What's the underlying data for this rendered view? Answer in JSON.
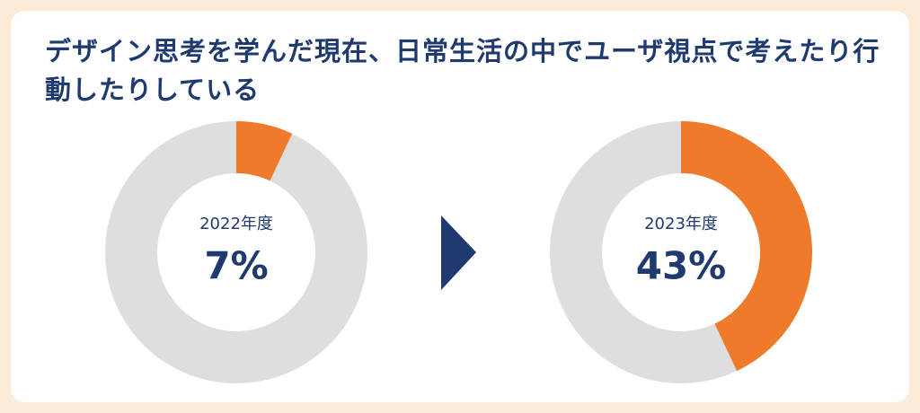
{
  "title": "デザイン思考を学んだ現在、日常生活の中でユーザ視点で考えたり行動したりしている",
  "chart_data": [
    {
      "type": "donut",
      "subtitle": "2022年度",
      "values": [
        7
      ],
      "value_labels": [
        "7%"
      ],
      "color": "#f07a2b",
      "ylim": [
        0,
        100
      ]
    },
    {
      "type": "donut",
      "subtitle": "2023年度",
      "values": [
        43
      ],
      "value_labels": [
        "43%"
      ],
      "color": "#f07a2b",
      "ylim": [
        0,
        100
      ]
    }
  ]
}
